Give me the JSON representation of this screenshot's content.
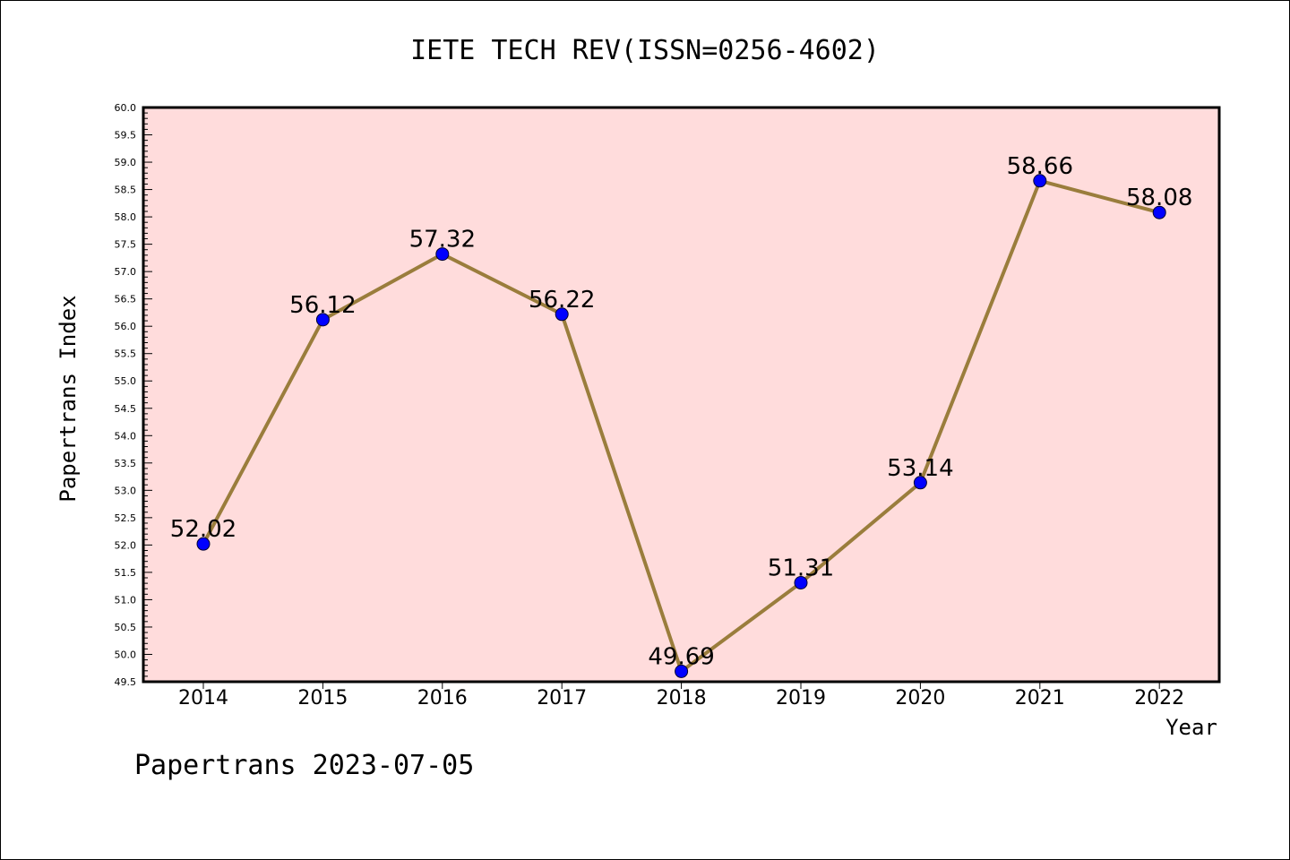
{
  "chart_data": {
    "type": "line",
    "title": "IETE TECH REV(ISSN=0256-4602)",
    "xlabel": "Year",
    "ylabel": "Papertrans Index",
    "categories": [
      "2014",
      "2015",
      "2016",
      "2017",
      "2018",
      "2019",
      "2020",
      "2021",
      "2022"
    ],
    "values": [
      52.02,
      56.12,
      57.32,
      56.22,
      49.69,
      51.31,
      53.14,
      58.66,
      58.08
    ],
    "data_labels": [
      "52.02",
      "56.12",
      "57.32",
      "56.22",
      "49.69",
      "51.31",
      "53.14",
      "58.66",
      "58.08"
    ],
    "ylim": [
      49.5,
      60.0
    ],
    "yticks": [
      "49.5",
      "50.0",
      "50.5",
      "51.0",
      "51.5",
      "52.0",
      "52.5",
      "53.0",
      "53.5",
      "54.0",
      "54.5",
      "55.0",
      "55.5",
      "56.0",
      "56.5",
      "57.0",
      "57.5",
      "58.0",
      "58.5",
      "59.0",
      "59.5",
      "60.0"
    ],
    "grid": false,
    "legend": "none",
    "footer": "Papertrans 2023-07-05",
    "colors": {
      "plot_background": "#ffdcdc",
      "line": "#9a7d3c",
      "marker": "#0000ff"
    }
  }
}
